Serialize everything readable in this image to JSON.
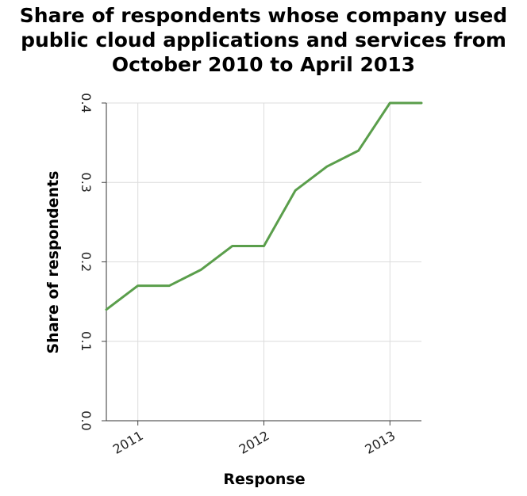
{
  "chart_data": {
    "type": "line",
    "title_lines": [
      "Share of respondents whose company used",
      "public cloud applications and services from",
      "October 2010 to April 2013"
    ],
    "xlabel": "Response",
    "ylabel": "Share of respondents",
    "x_ticks": [
      "2011",
      "2012",
      "2013"
    ],
    "y_ticks": [
      "0.0",
      "0.1",
      "0.2",
      "0.3",
      "0.4"
    ],
    "xlim": [
      "2010-10",
      "2013-04"
    ],
    "ylim": [
      0,
      0.4
    ],
    "grid": true,
    "line_color": "#5a9e4b",
    "series": [
      {
        "x": [
          "2010-10",
          "2011-01",
          "2011-04",
          "2011-07",
          "2011-10",
          "2012-01",
          "2012-04",
          "2012-07",
          "2012-10",
          "2013-01",
          "2013-04"
        ],
        "values": [
          0.14,
          0.17,
          0.17,
          0.19,
          0.22,
          0.22,
          0.29,
          0.32,
          0.34,
          0.4,
          0.4
        ]
      }
    ]
  }
}
